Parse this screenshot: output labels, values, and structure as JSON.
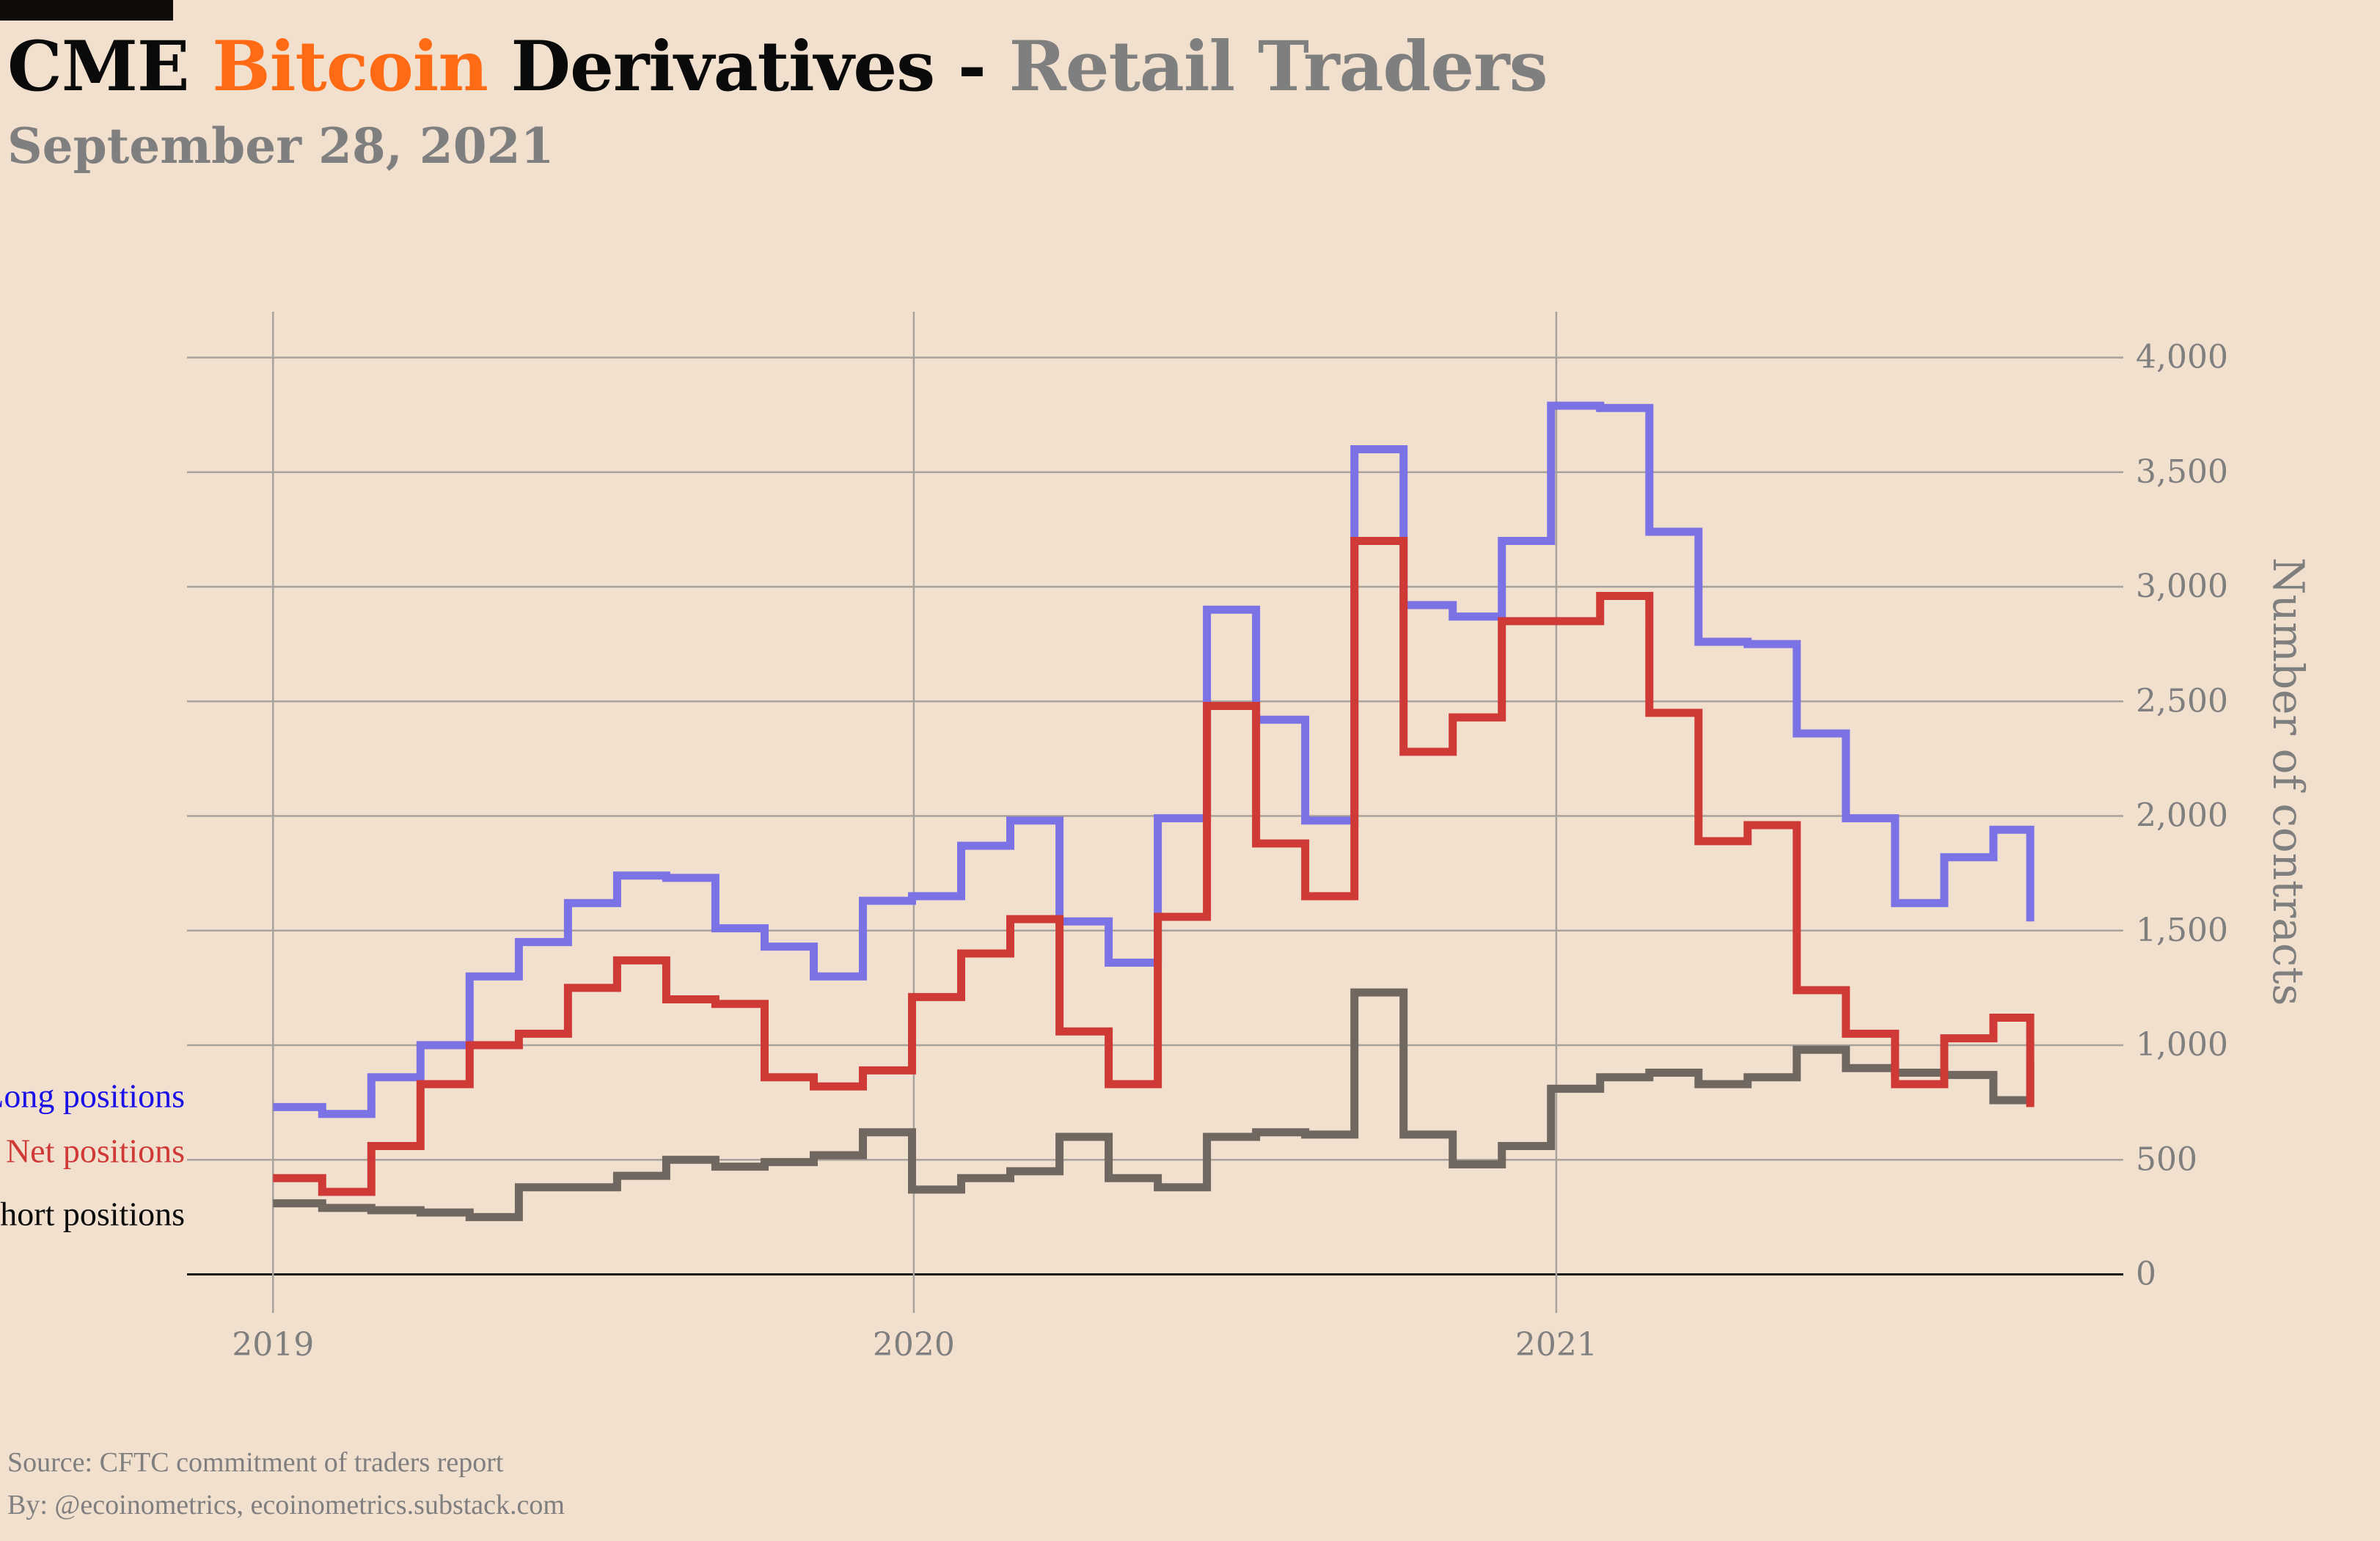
{
  "header": {
    "title_part1": "CME ",
    "title_part2": "Bitcoin",
    "title_part3": " Derivatives - ",
    "title_part4": "Retail Traders",
    "subtitle": "September 28, 2021"
  },
  "footer": {
    "source": "Source: CFTC commitment of traders report",
    "by": "By: @ecoinometrics, ecoinometrics.substack.com"
  },
  "colors": {
    "background": "#f2e0cf",
    "long": "#7b72e6",
    "net": "#cf3a36",
    "short": "#6f6760",
    "long_label": "#1a10e8",
    "net_label": "#cf3a36",
    "short_label": "#0a0a0a",
    "grid": "#a8a29c",
    "axis_text": "#7f7f7f",
    "brand_orange": "#ff6a14"
  },
  "chart_data": {
    "type": "line",
    "step": true,
    "title": "",
    "xlabel": "",
    "ylabel": "Number of contracts",
    "y_axis_side": "right",
    "ylim": [
      -200,
      4200
    ],
    "x_range": [
      "2018-11-13",
      "2021-11-20"
    ],
    "x_ticks": [
      {
        "value": "2019-01-01",
        "label": "2019"
      },
      {
        "value": "2020-01-01",
        "label": "2020"
      },
      {
        "value": "2021-01-01",
        "label": "2021"
      }
    ],
    "y_ticks": [
      {
        "value": 0,
        "label": "0"
      },
      {
        "value": 500,
        "label": "500"
      },
      {
        "value": 1000,
        "label": "1,000"
      },
      {
        "value": 1500,
        "label": "1,500"
      },
      {
        "value": 2000,
        "label": "2,000"
      },
      {
        "value": 2500,
        "label": "2,500"
      },
      {
        "value": 3000,
        "label": "3,000"
      },
      {
        "value": 3500,
        "label": "3,500"
      },
      {
        "value": 4000,
        "label": "4,000"
      }
    ],
    "grid": true,
    "legend": "inline labels at left edge",
    "series": [
      {
        "name": "Long positions",
        "color": "#7b72e6",
        "x": [
          "2019-01-01",
          "2019-01-29",
          "2019-02-26",
          "2019-03-26",
          "2019-04-23",
          "2019-05-21",
          "2019-06-18",
          "2019-07-16",
          "2019-08-13",
          "2019-09-10",
          "2019-10-08",
          "2019-11-05",
          "2019-12-03",
          "2019-12-31",
          "2020-01-28",
          "2020-02-25",
          "2020-03-24",
          "2020-04-21",
          "2020-05-19",
          "2020-06-16",
          "2020-07-14",
          "2020-08-11",
          "2020-09-08",
          "2020-10-06",
          "2020-11-03",
          "2020-12-01",
          "2020-12-29",
          "2021-01-26",
          "2021-02-23",
          "2021-03-23",
          "2021-04-20",
          "2021-05-18",
          "2021-06-15",
          "2021-07-13",
          "2021-08-10",
          "2021-09-07",
          "2021-09-28"
        ],
        "values": [
          730,
          700,
          860,
          1000,
          1300,
          1450,
          1620,
          1740,
          1730,
          1510,
          1430,
          1300,
          1630,
          1650,
          1870,
          1980,
          1540,
          1360,
          1990,
          2900,
          2420,
          1980,
          3600,
          2920,
          2870,
          3200,
          3790,
          3780,
          3240,
          2760,
          2750,
          2360,
          1990,
          1620,
          1820,
          1940,
          1540
        ]
      },
      {
        "name": "Net positions",
        "color": "#cf3a36",
        "x": [
          "2019-01-01",
          "2019-01-29",
          "2019-02-26",
          "2019-03-26",
          "2019-04-23",
          "2019-05-21",
          "2019-06-18",
          "2019-07-16",
          "2019-08-13",
          "2019-09-10",
          "2019-10-08",
          "2019-11-05",
          "2019-12-03",
          "2019-12-31",
          "2020-01-28",
          "2020-02-25",
          "2020-03-24",
          "2020-04-21",
          "2020-05-19",
          "2020-06-16",
          "2020-07-14",
          "2020-08-11",
          "2020-09-08",
          "2020-10-06",
          "2020-11-03",
          "2020-12-01",
          "2020-12-29",
          "2021-01-26",
          "2021-02-23",
          "2021-03-23",
          "2021-04-20",
          "2021-05-18",
          "2021-06-15",
          "2021-07-13",
          "2021-08-10",
          "2021-09-07",
          "2021-09-28"
        ],
        "values": [
          420,
          360,
          560,
          830,
          1000,
          1050,
          1250,
          1370,
          1200,
          1180,
          860,
          820,
          890,
          1210,
          1400,
          1550,
          1060,
          830,
          1560,
          2480,
          1880,
          1650,
          3200,
          2280,
          2430,
          2850,
          2850,
          2960,
          2450,
          1890,
          1960,
          1240,
          1050,
          830,
          1030,
          1120,
          730
        ]
      },
      {
        "name": "Short positions",
        "color": "#6f6760",
        "x": [
          "2019-01-01",
          "2019-01-29",
          "2019-02-26",
          "2019-03-26",
          "2019-04-23",
          "2019-05-21",
          "2019-06-18",
          "2019-07-16",
          "2019-08-13",
          "2019-09-10",
          "2019-10-08",
          "2019-11-05",
          "2019-12-03",
          "2019-12-31",
          "2020-01-28",
          "2020-02-25",
          "2020-03-24",
          "2020-04-21",
          "2020-05-19",
          "2020-06-16",
          "2020-07-14",
          "2020-08-11",
          "2020-09-08",
          "2020-10-06",
          "2020-11-03",
          "2020-12-01",
          "2020-12-29",
          "2021-01-26",
          "2021-02-23",
          "2021-03-23",
          "2021-04-20",
          "2021-05-18",
          "2021-06-15",
          "2021-07-13",
          "2021-08-10",
          "2021-09-07",
          "2021-09-28"
        ],
        "values": [
          310,
          290,
          280,
          270,
          250,
          380,
          380,
          430,
          500,
          470,
          490,
          520,
          620,
          370,
          420,
          450,
          600,
          420,
          380,
          600,
          620,
          610,
          1230,
          610,
          480,
          560,
          810,
          860,
          880,
          830,
          860,
          980,
          900,
          880,
          870,
          760,
          930
        ]
      }
    ]
  }
}
